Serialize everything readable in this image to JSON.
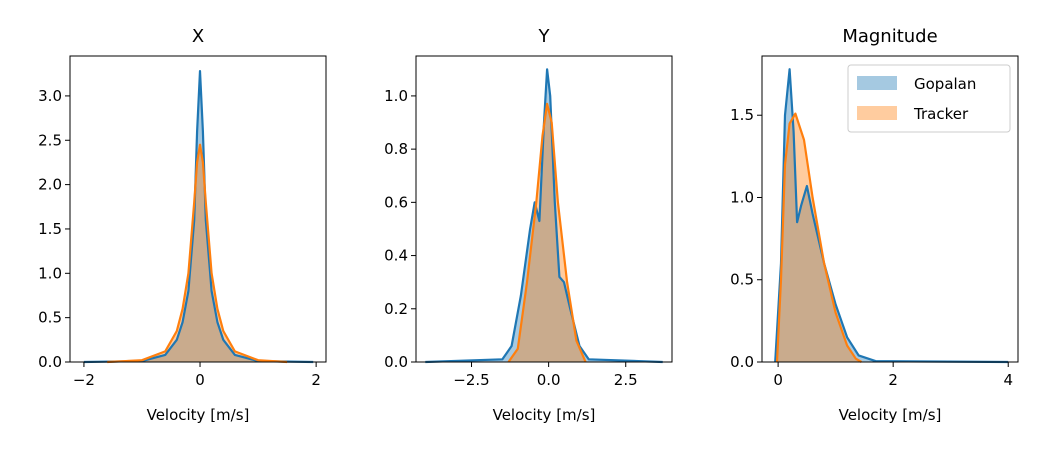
{
  "chart_data": [
    {
      "type": "line",
      "title": "X",
      "xlabel": "Velocity [m/s]",
      "ylabel": "",
      "xlim": [
        -2.24,
        2.17
      ],
      "ylim": [
        0,
        3.45
      ],
      "xticks": [
        -2,
        0,
        2
      ],
      "xtick_labels": [
        "−2",
        "0",
        "2"
      ],
      "yticks": [
        0,
        0.5,
        1,
        1.5,
        2,
        2.5,
        3
      ],
      "ytick_labels": [
        "0.0",
        "0.5",
        "1.0",
        "1.5",
        "2.0",
        "2.5",
        "3.0"
      ],
      "series": [
        {
          "name": "Gopalan",
          "color": "#1f77b4",
          "points": [
            [
              -2,
              0
            ],
            [
              -1,
              0.01
            ],
            [
              -0.6,
              0.08
            ],
            [
              -0.4,
              0.25
            ],
            [
              -0.3,
              0.45
            ],
            [
              -0.2,
              0.8
            ],
            [
              -0.1,
              1.6
            ],
            [
              -0.05,
              2.6
            ],
            [
              0,
              3.28
            ],
            [
              0.05,
              2.6
            ],
            [
              0.1,
              1.6
            ],
            [
              0.2,
              0.8
            ],
            [
              0.3,
              0.45
            ],
            [
              0.4,
              0.25
            ],
            [
              0.6,
              0.08
            ],
            [
              1,
              0.01
            ],
            [
              1.95,
              0
            ]
          ]
        },
        {
          "name": "Tracker",
          "color": "#ff7f0e",
          "points": [
            [
              -1.6,
              0
            ],
            [
              -1,
              0.02
            ],
            [
              -0.6,
              0.12
            ],
            [
              -0.4,
              0.35
            ],
            [
              -0.3,
              0.6
            ],
            [
              -0.2,
              1.0
            ],
            [
              -0.1,
              1.8
            ],
            [
              -0.05,
              2.25
            ],
            [
              0,
              2.45
            ],
            [
              0.05,
              2.25
            ],
            [
              0.1,
              1.8
            ],
            [
              0.2,
              1.0
            ],
            [
              0.3,
              0.6
            ],
            [
              0.4,
              0.35
            ],
            [
              0.6,
              0.12
            ],
            [
              1,
              0.02
            ],
            [
              1.5,
              0
            ]
          ]
        }
      ]
    },
    {
      "type": "line",
      "title": "Y",
      "xlabel": "Velocity [m/s]",
      "ylabel": "",
      "xlim": [
        -4.3,
        4.0
      ],
      "ylim": [
        0,
        1.15
      ],
      "xticks": [
        -2.5,
        0,
        2.5
      ],
      "xtick_labels": [
        "−2.5",
        "0.0",
        "2.5"
      ],
      "yticks": [
        0,
        0.2,
        0.4,
        0.6,
        0.8,
        1.0
      ],
      "ytick_labels": [
        "0.0",
        "0.2",
        "0.4",
        "0.6",
        "0.8",
        "1.0"
      ],
      "series": [
        {
          "name": "Gopalan",
          "color": "#1f77b4",
          "points": [
            [
              -4,
              0
            ],
            [
              -1.5,
              0.01
            ],
            [
              -1.2,
              0.06
            ],
            [
              -0.9,
              0.25
            ],
            [
              -0.6,
              0.5
            ],
            [
              -0.45,
              0.6
            ],
            [
              -0.3,
              0.53
            ],
            [
              -0.15,
              0.9
            ],
            [
              -0.05,
              1.1
            ],
            [
              0.05,
              1.0
            ],
            [
              0.2,
              0.6
            ],
            [
              0.35,
              0.32
            ],
            [
              0.5,
              0.3
            ],
            [
              0.7,
              0.2
            ],
            [
              1.0,
              0.06
            ],
            [
              1.3,
              0.01
            ],
            [
              3.7,
              0
            ]
          ]
        },
        {
          "name": "Tracker",
          "color": "#ff7f0e",
          "points": [
            [
              -1.3,
              0
            ],
            [
              -1.0,
              0.05
            ],
            [
              -0.7,
              0.3
            ],
            [
              -0.4,
              0.6
            ],
            [
              -0.2,
              0.85
            ],
            [
              -0.05,
              0.97
            ],
            [
              0.1,
              0.9
            ],
            [
              0.3,
              0.6
            ],
            [
              0.6,
              0.3
            ],
            [
              0.9,
              0.08
            ],
            [
              1.2,
              0
            ]
          ]
        }
      ]
    },
    {
      "type": "line",
      "title": "Magnitude",
      "xlabel": "Velocity [m/s]",
      "ylabel": "",
      "xlim": [
        -0.28,
        4.17
      ],
      "ylim": [
        0,
        1.86
      ],
      "xticks": [
        0,
        2,
        4
      ],
      "xtick_labels": [
        "0",
        "2",
        "4"
      ],
      "yticks": [
        0,
        0.5,
        1.0,
        1.5
      ],
      "ytick_labels": [
        "0.0",
        "0.5",
        "1.0",
        "1.5"
      ],
      "legend": {
        "placement": "top-right",
        "entries": [
          "Gopalan",
          "Tracker"
        ]
      },
      "series": [
        {
          "name": "Gopalan",
          "color": "#1f77b4",
          "points": [
            [
              -0.05,
              0
            ],
            [
              0.05,
              0.6
            ],
            [
              0.12,
              1.5
            ],
            [
              0.2,
              1.78
            ],
            [
              0.27,
              1.4
            ],
            [
              0.33,
              0.85
            ],
            [
              0.4,
              0.95
            ],
            [
              0.5,
              1.07
            ],
            [
              0.6,
              0.9
            ],
            [
              0.8,
              0.6
            ],
            [
              1.0,
              0.35
            ],
            [
              1.2,
              0.15
            ],
            [
              1.4,
              0.04
            ],
            [
              1.7,
              0.005
            ],
            [
              4.0,
              0
            ]
          ]
        },
        {
          "name": "Tracker",
          "color": "#ff7f0e",
          "points": [
            [
              -0.02,
              0
            ],
            [
              0.05,
              0.5
            ],
            [
              0.12,
              1.2
            ],
            [
              0.2,
              1.45
            ],
            [
              0.3,
              1.51
            ],
            [
              0.45,
              1.35
            ],
            [
              0.6,
              1.0
            ],
            [
              0.8,
              0.6
            ],
            [
              1.0,
              0.3
            ],
            [
              1.2,
              0.1
            ],
            [
              1.35,
              0.02
            ],
            [
              1.45,
              0
            ]
          ]
        }
      ]
    }
  ]
}
